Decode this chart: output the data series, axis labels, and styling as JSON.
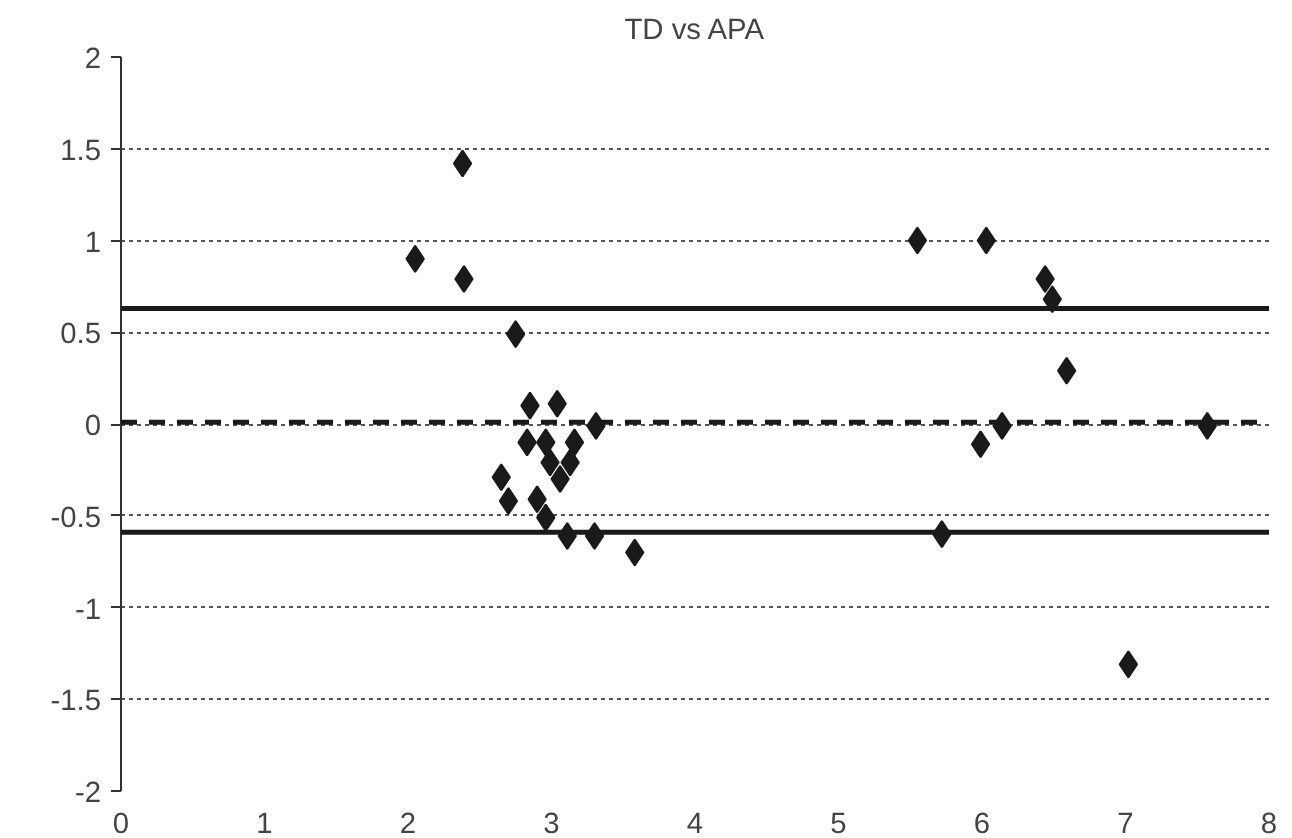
{
  "chart_data": {
    "type": "scatter",
    "title": "TD vs APA",
    "x": [
      2.38,
      2.05,
      2.39,
      2.75,
      2.85,
      3.04,
      3.31,
      2.83,
      2.96,
      3.16,
      2.99,
      3.13,
      3.06,
      2.65,
      2.7,
      2.9,
      2.96,
      3.11,
      3.3,
      3.58,
      5.55,
      5.72,
      6.03,
      6.44,
      6.49,
      6.59,
      6.14,
      5.99,
      7.57,
      7.02
    ],
    "values": [
      1.42,
      0.9,
      0.79,
      0.49,
      0.1,
      0.11,
      -0.01,
      -0.1,
      -0.1,
      -0.1,
      -0.21,
      -0.21,
      -0.3,
      -0.29,
      -0.42,
      -0.41,
      -0.51,
      -0.61,
      -0.61,
      -0.7,
      1.0,
      -0.6,
      1.0,
      0.79,
      0.68,
      0.29,
      -0.01,
      -0.11,
      -0.01,
      -1.31
    ],
    "color": "#1a1a1a",
    "marker": "diamond",
    "xlim": [
      0,
      8
    ],
    "xticks": [
      0,
      1,
      2,
      3,
      4,
      5,
      6,
      7,
      8
    ],
    "ylim": [
      -2,
      2
    ],
    "yticks": [
      -2,
      -1.5,
      -1,
      -0.5,
      0,
      0.5,
      1,
      1.5,
      2
    ],
    "grid": "y",
    "ref_lines": [
      {
        "axis": "y",
        "value": 0.63,
        "color": "#1a1a1a",
        "line_style": "solid"
      },
      {
        "axis": "y",
        "value": 0.01,
        "color": "#1a1a1a",
        "line_style": "dashed"
      },
      {
        "axis": "y",
        "value": -0.59,
        "color": "#1a1a1a",
        "line_style": "solid"
      }
    ]
  }
}
